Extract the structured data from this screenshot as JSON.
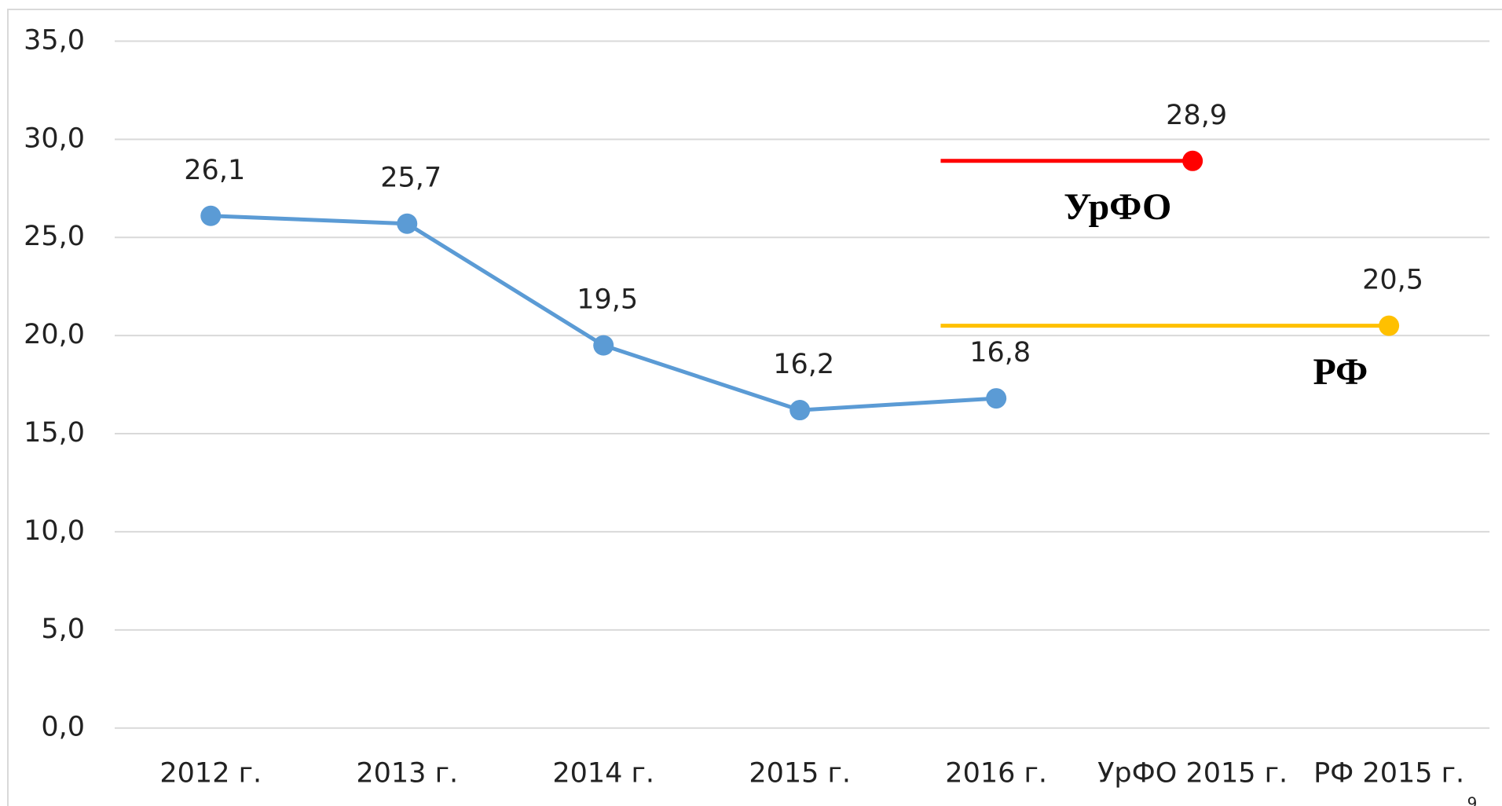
{
  "chart_data": {
    "type": "line",
    "categories": [
      "2012 г.",
      "2013 г.",
      "2014 г.",
      "2015 г.",
      "2016 г.",
      "УрФО 2015 г.",
      "РФ 2015 г."
    ],
    "series": [
      {
        "color": "#5b9bd5",
        "values": [
          26.1,
          25.7,
          19.5,
          16.2,
          16.8,
          null,
          null
        ],
        "value_labels": [
          "26,1",
          "25,7",
          "19,5",
          "16,2",
          "16,8",
          null,
          null
        ]
      },
      {
        "name": "УрФО",
        "color": "#ff0000",
        "values": [
          null,
          null,
          null,
          null,
          null,
          28.9,
          null
        ],
        "value_labels": [
          null,
          null,
          null,
          null,
          null,
          "28,9",
          null
        ]
      },
      {
        "name": "РФ",
        "color": "#ffc000",
        "values": [
          null,
          null,
          null,
          null,
          null,
          null,
          20.5
        ],
        "value_labels": [
          null,
          null,
          null,
          null,
          null,
          null,
          "20,5"
        ]
      }
    ],
    "ylim": [
      0,
      35
    ],
    "yticks": [
      {
        "value": 0,
        "label": "0,0"
      },
      {
        "value": 5,
        "label": "5,0"
      },
      {
        "value": 10,
        "label": "10,0"
      },
      {
        "value": 15,
        "label": "15,0"
      },
      {
        "value": 20,
        "label": "20,0"
      },
      {
        "value": 25,
        "label": "25,0"
      },
      {
        "value": 30,
        "label": "30,0"
      },
      {
        "value": 35,
        "label": "35,0"
      }
    ],
    "grid": true
  },
  "page_number": "9"
}
